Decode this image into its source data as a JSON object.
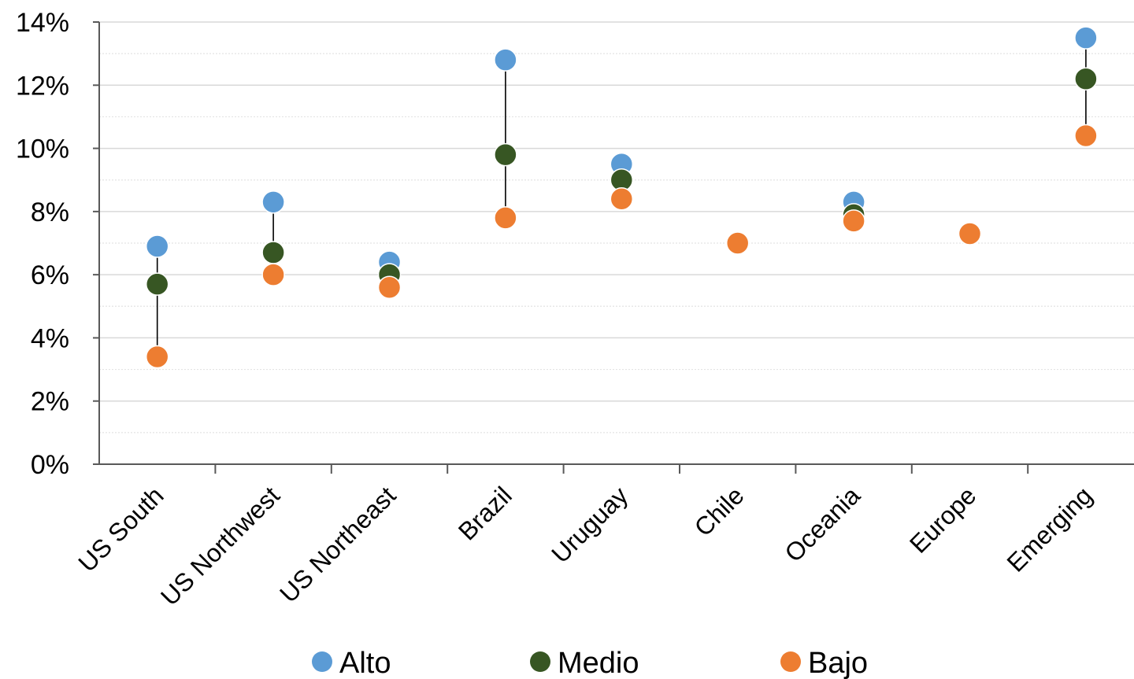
{
  "chart_data": {
    "type": "scatter",
    "categories": [
      "US South",
      "US Northwest",
      "US Northeast",
      "Brazil",
      "Uruguay",
      "Chile",
      "Oceania",
      "Europe",
      "Emerging"
    ],
    "series": [
      {
        "name": "Alto",
        "color": "#5b9bd5",
        "values": [
          6.9,
          8.3,
          6.4,
          12.8,
          9.5,
          7.0,
          8.3,
          7.3,
          13.5
        ]
      },
      {
        "name": "Medio",
        "color": "#375623",
        "values": [
          5.7,
          6.7,
          6.0,
          9.8,
          9.0,
          7.0,
          7.9,
          7.3,
          12.2
        ]
      },
      {
        "name": "Bajo",
        "color": "#ed7d31",
        "values": [
          3.4,
          6.0,
          5.6,
          7.8,
          8.4,
          7.0,
          7.7,
          7.3,
          10.4
        ]
      }
    ],
    "y_ticks": [
      "0%",
      "2%",
      "4%",
      "6%",
      "8%",
      "10%",
      "12%",
      "14%"
    ],
    "ylim": [
      0,
      14
    ],
    "grid": true,
    "legend_position": "bottom",
    "range_lines": true,
    "title": "",
    "xlabel": "",
    "ylabel": ""
  }
}
